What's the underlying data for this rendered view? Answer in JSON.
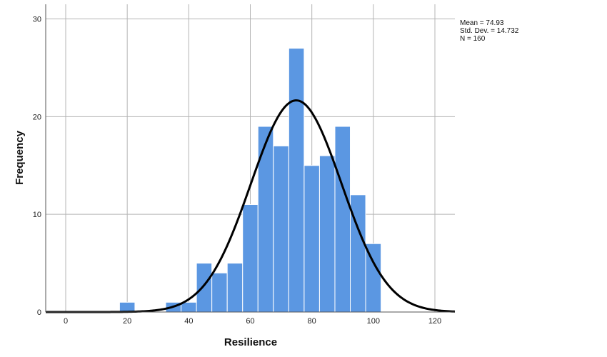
{
  "chart_data": {
    "type": "bar",
    "subtype": "histogram",
    "xlabel": "Resilience",
    "ylabel": "Frequency",
    "xlim": [
      -6.5,
      126.5
    ],
    "ylim": [
      0,
      31.5
    ],
    "x_ticks": [
      0,
      20,
      40,
      60,
      80,
      100,
      120
    ],
    "y_ticks": [
      0,
      10,
      20,
      30
    ],
    "bin_width": 5,
    "bins": [
      {
        "start": 17.5,
        "end": 22.5,
        "count": 1
      },
      {
        "start": 32.5,
        "end": 37.5,
        "count": 1
      },
      {
        "start": 37.5,
        "end": 42.5,
        "count": 1
      },
      {
        "start": 42.5,
        "end": 47.5,
        "count": 5
      },
      {
        "start": 47.5,
        "end": 52.5,
        "count": 4
      },
      {
        "start": 52.5,
        "end": 57.5,
        "count": 5
      },
      {
        "start": 57.5,
        "end": 62.5,
        "count": 11
      },
      {
        "start": 62.5,
        "end": 67.5,
        "count": 19
      },
      {
        "start": 67.5,
        "end": 72.5,
        "count": 17
      },
      {
        "start": 72.5,
        "end": 77.5,
        "count": 27
      },
      {
        "start": 77.5,
        "end": 82.5,
        "count": 15
      },
      {
        "start": 82.5,
        "end": 87.5,
        "count": 16
      },
      {
        "start": 87.5,
        "end": 92.5,
        "count": 19
      },
      {
        "start": 92.5,
        "end": 97.5,
        "count": 12
      },
      {
        "start": 97.5,
        "end": 102.5,
        "count": 7
      }
    ],
    "normal_curve": {
      "mean": 74.93,
      "sd": 14.732,
      "n": 160
    },
    "grid": true,
    "bar_color": "#5b97e2",
    "bar_edge_color": "#ffffff",
    "curve_color": "#000000"
  },
  "stats": {
    "mean_text": "Mean = 74.93",
    "sd_text": "Std. Dev. = 14.732",
    "n_text": "N = 160"
  }
}
